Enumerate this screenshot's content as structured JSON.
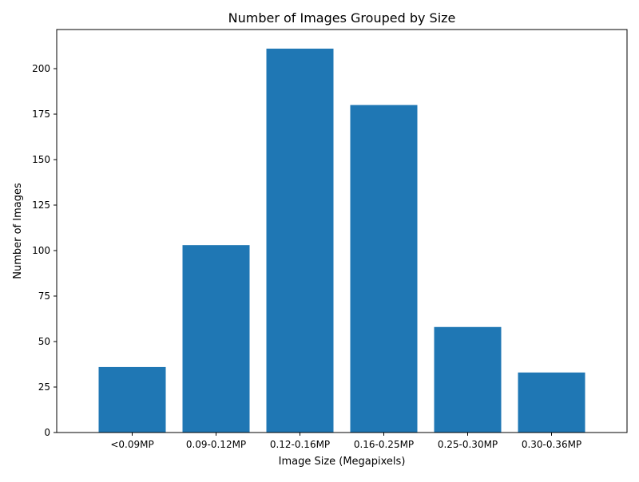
{
  "chart_data": {
    "type": "bar",
    "title": "Number of Images Grouped by Size",
    "xlabel": "Image Size (Megapixels)",
    "ylabel": "Number of Images",
    "categories": [
      "<0.09MP",
      "0.09-0.12MP",
      "0.12-0.16MP",
      "0.16-0.25MP",
      "0.25-0.30MP",
      "0.30-0.36MP"
    ],
    "values": [
      36,
      103,
      211,
      180,
      58,
      33
    ],
    "ylim": [
      0,
      221.5
    ],
    "yticks": [
      0,
      25,
      50,
      75,
      100,
      125,
      150,
      175,
      200
    ],
    "grid": false,
    "bar_color": "#1f77b4"
  }
}
